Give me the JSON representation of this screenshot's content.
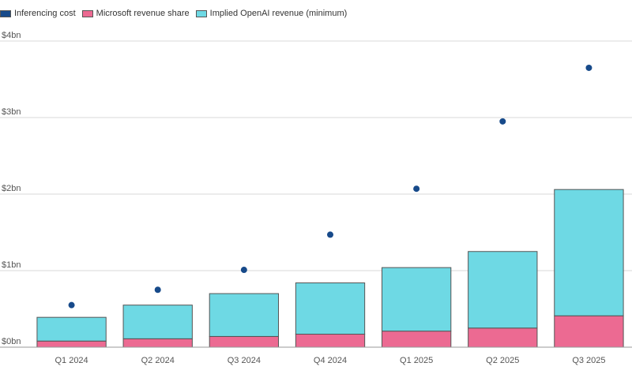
{
  "colors": {
    "inferencing": "#174a8a",
    "microsoft": "#ec6a92",
    "openai": "#6ed9e4",
    "grid": "#d8d8d8",
    "axis": "#999999"
  },
  "legend": [
    {
      "label": "Inferencing cost",
      "color": "#174a8a"
    },
    {
      "label": "Microsoft revenue share",
      "color": "#ec6a92"
    },
    {
      "label": "Implied OpenAI revenue (minimum)",
      "color": "#6ed9e4"
    }
  ],
  "chart_data": {
    "type": "bar",
    "stacked": true,
    "categories": [
      "Q1 2024",
      "Q2 2024",
      "Q3 2024",
      "Q4 2024",
      "Q1 2025",
      "Q2 2025",
      "Q3 2025"
    ],
    "series": [
      {
        "name": "Microsoft revenue share",
        "kind": "bar",
        "values": [
          0.08,
          0.11,
          0.14,
          0.17,
          0.21,
          0.25,
          0.41
        ]
      },
      {
        "name": "Implied OpenAI revenue (minimum)",
        "kind": "bar",
        "values": [
          0.31,
          0.44,
          0.56,
          0.67,
          0.83,
          1.0,
          1.65
        ]
      },
      {
        "name": "Inferencing cost",
        "kind": "scatter",
        "values": [
          0.55,
          0.75,
          1.01,
          1.47,
          2.07,
          2.95,
          3.65
        ]
      }
    ],
    "yticks": [
      "$0bn",
      "$1bn",
      "$2bn",
      "$3bn",
      "$4bn"
    ],
    "ylim": [
      0,
      4
    ],
    "grid": true,
    "legend_position": "top-left"
  }
}
